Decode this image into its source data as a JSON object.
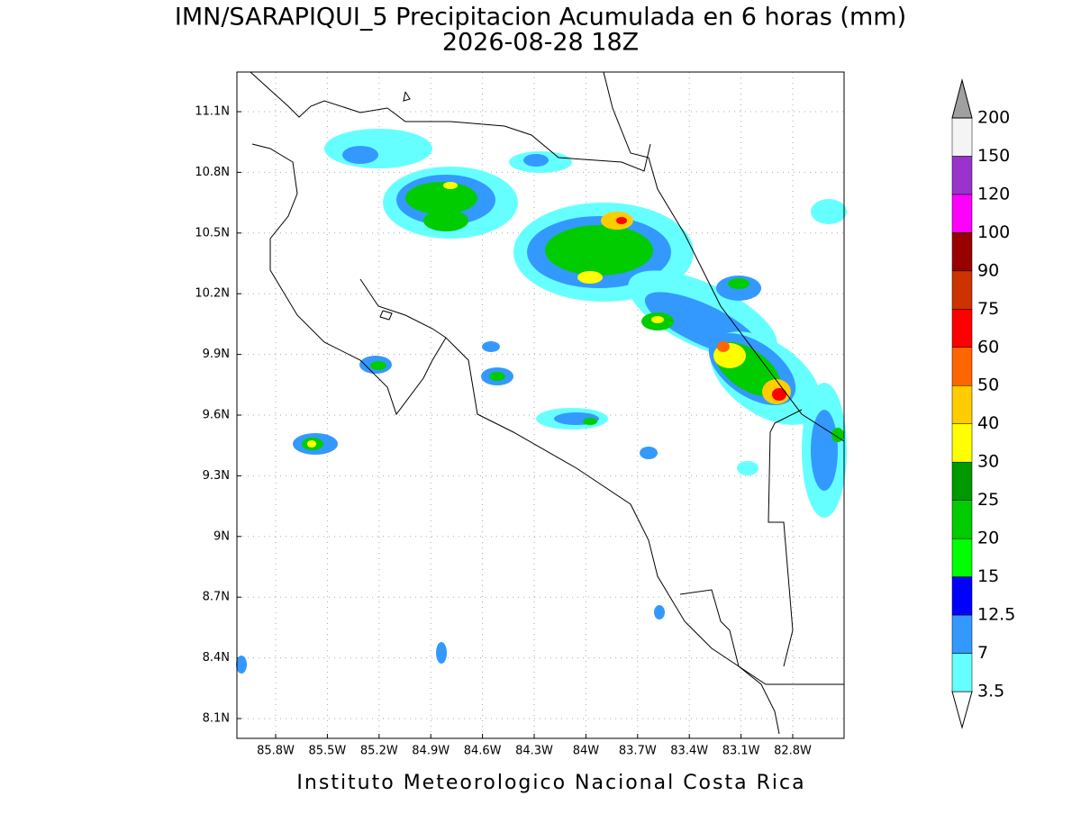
{
  "title": "IMN/SARAPIQUI_5 Precipitacion Acumulada en 6 horas (mm)",
  "subtitle": "2026-08-28 18Z",
  "lon_ticks": [
    "85.8W",
    "85.5W",
    "85.2W",
    "84.9W",
    "84.6W",
    "84.3W",
    "84W",
    "83.7W",
    "83.4W",
    "83.1W",
    "82.8W"
  ],
  "lat_ticks": [
    "11.1N",
    "10.8N",
    "10.5N",
    "10.2N",
    "9.9N",
    "9.6N",
    "9.3N",
    "9N",
    "8.7N",
    "8.4N",
    "8.1N"
  ],
  "colorbar": {
    "levels": [
      3.5,
      7,
      12.5,
      15,
      20,
      25,
      30,
      40,
      50,
      60,
      75,
      90,
      100,
      120,
      150,
      200
    ],
    "colors": [
      "#ffffff",
      "#66ffff",
      "#3399ff",
      "#0000ff",
      "#00ff00",
      "#00cc00",
      "#009900",
      "#ffff00",
      "#ffcc00",
      "#ff6600",
      "#ff0000",
      "#cc3300",
      "#990000",
      "#ff00ff",
      "#9933cc",
      "#f4f4f4",
      "#a0a0a0"
    ]
  },
  "footer": "Instituto Meteorologico Nacional Costa Rica"
}
